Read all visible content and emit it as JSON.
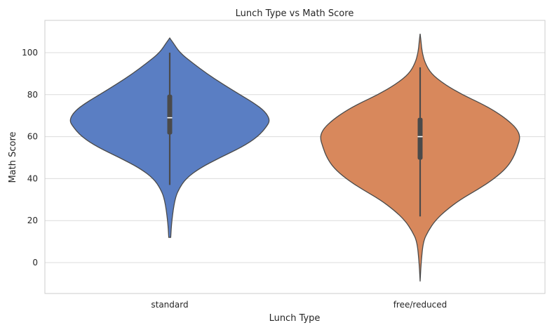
{
  "chart_data": {
    "type": "violin",
    "title": "Lunch Type vs Math Score",
    "xlabel": "Lunch Type",
    "ylabel": "Math Score",
    "categories": [
      "standard",
      "free/reduced"
    ],
    "ylim": [
      -15,
      115
    ],
    "yticks": [
      0,
      20,
      40,
      60,
      80,
      100
    ],
    "grid": true,
    "colors": [
      "#5a7ec3",
      "#d8885c"
    ],
    "series": [
      {
        "category": "standard",
        "color": "#5a7ec3",
        "kde_min": 12,
        "kde_max": 107,
        "whisker_low": 37,
        "whisker_high": 100,
        "q1": 61,
        "median": 69,
        "q3": 80,
        "density_profile": [
          [
            12,
            0.01
          ],
          [
            20,
            0.02
          ],
          [
            30,
            0.05
          ],
          [
            35,
            0.09
          ],
          [
            40,
            0.16
          ],
          [
            45,
            0.3
          ],
          [
            50,
            0.5
          ],
          [
            55,
            0.72
          ],
          [
            60,
            0.88
          ],
          [
            65,
            0.97
          ],
          [
            68,
            1.0
          ],
          [
            72,
            0.95
          ],
          [
            76,
            0.84
          ],
          [
            80,
            0.7
          ],
          [
            85,
            0.53
          ],
          [
            90,
            0.37
          ],
          [
            95,
            0.23
          ],
          [
            100,
            0.1
          ],
          [
            105,
            0.03
          ],
          [
            107,
            0.0
          ]
        ]
      },
      {
        "category": "free/reduced",
        "color": "#d8885c",
        "kde_min": -9,
        "kde_max": 109,
        "whisker_low": 22,
        "whisker_high": 93,
        "q1": 49,
        "median": 60,
        "q3": 69,
        "density_profile": [
          [
            -9,
            0.0
          ],
          [
            0,
            0.01
          ],
          [
            10,
            0.03
          ],
          [
            15,
            0.08
          ],
          [
            20,
            0.15
          ],
          [
            25,
            0.26
          ],
          [
            30,
            0.4
          ],
          [
            35,
            0.58
          ],
          [
            40,
            0.74
          ],
          [
            45,
            0.86
          ],
          [
            50,
            0.93
          ],
          [
            55,
            0.97
          ],
          [
            60,
            1.0
          ],
          [
            64,
            0.96
          ],
          [
            68,
            0.87
          ],
          [
            72,
            0.75
          ],
          [
            76,
            0.6
          ],
          [
            80,
            0.42
          ],
          [
            85,
            0.24
          ],
          [
            90,
            0.11
          ],
          [
            95,
            0.05
          ],
          [
            100,
            0.02
          ],
          [
            105,
            0.01
          ],
          [
            109,
            0.0
          ]
        ]
      }
    ]
  }
}
